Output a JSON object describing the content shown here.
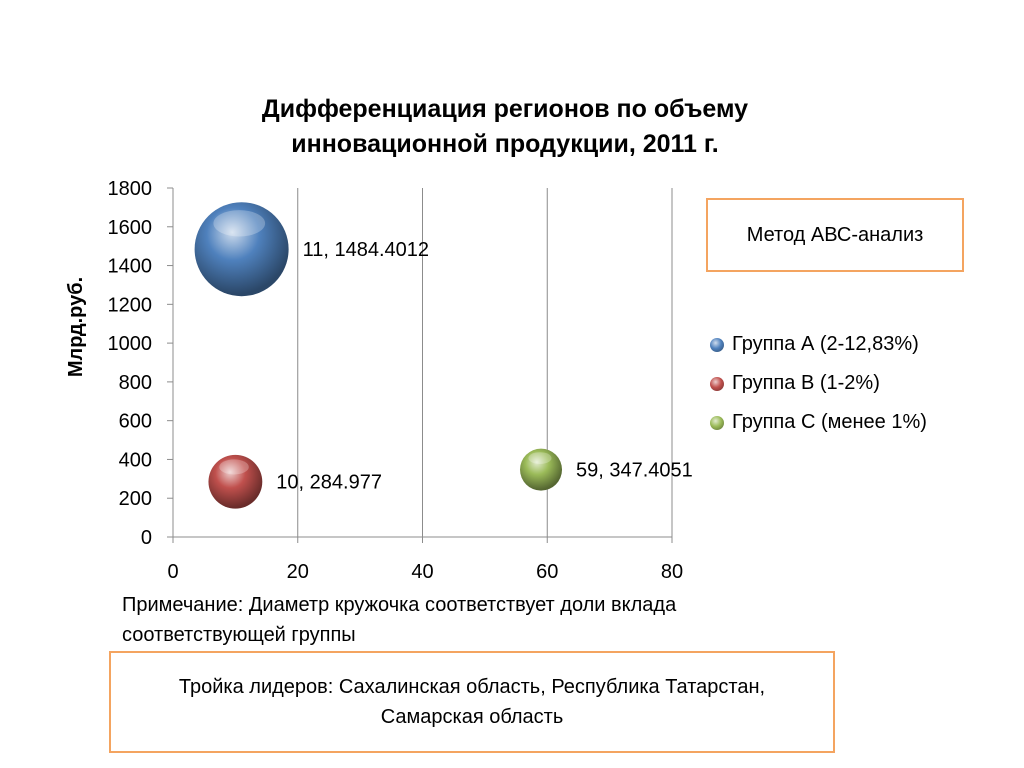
{
  "chart_data": {
    "type": "bubble",
    "title_lines": [
      "Дифференциация регионов по объему",
      "инновационной продукции, 2011 г."
    ],
    "ylabel": "Млрд.руб.",
    "xlabel": "",
    "xlim": [
      0,
      80
    ],
    "ylim": [
      0,
      1800
    ],
    "x_ticks": [
      0,
      20,
      40,
      60,
      80
    ],
    "y_ticks": [
      0,
      200,
      400,
      600,
      800,
      1000,
      1200,
      1400,
      1600,
      1800
    ],
    "grid": "vertical",
    "legend_position": "right",
    "series": [
      {
        "name": "Группа А (2-12,83%)",
        "color": "#4f81bd",
        "x": 11,
        "y": 1484.4012,
        "size": 12.83,
        "label": "11, 1484.4012"
      },
      {
        "name": "Группа В (1-2%)",
        "color": "#c0504d",
        "x": 10,
        "y": 284.977,
        "size": 2,
        "label": "10, 284.977"
      },
      {
        "name": "Группа С (менее 1%)",
        "color": "#9bbb59",
        "x": 59,
        "y": 347.4051,
        "size": 1,
        "label": "59, 347.4051"
      }
    ]
  },
  "method_box": "Метод АВС-анализ",
  "note": "Примечание: Диаметр кружочка соответствует доли вклада соответствующей группы",
  "leaders_box": "Тройка лидеров: Сахалинская область, Республика Татарстан, Самарская область"
}
